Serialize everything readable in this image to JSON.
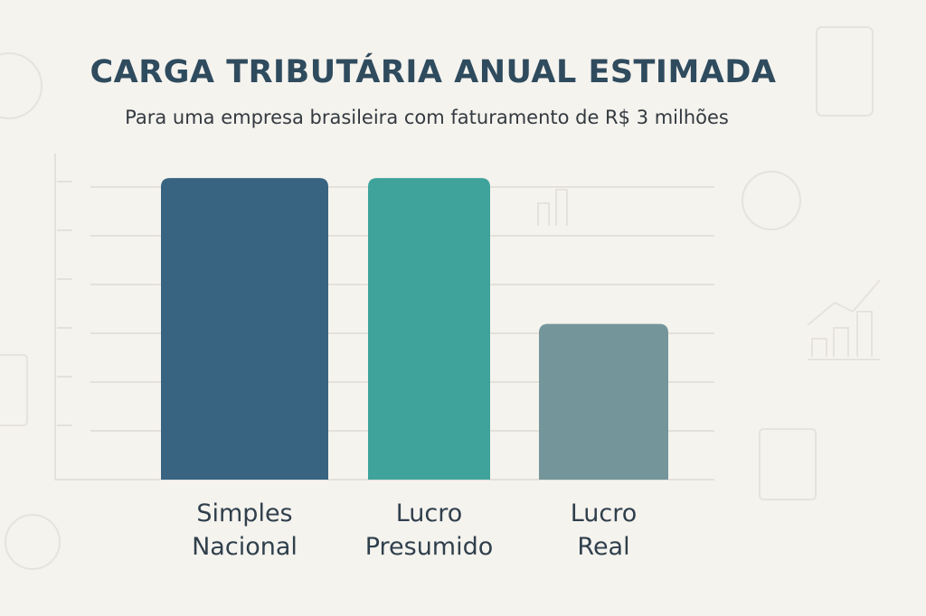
{
  "chart_data": {
    "type": "bar",
    "title": "CARGA TRIBUTÁRIA ANUAL ESTIMADA",
    "subtitle": "Para uma empresa brasileira com faturamento de R$ 3 milhões",
    "categories": [
      [
        "Simples",
        "Nacional"
      ],
      [
        "Lucro",
        "Presumido"
      ],
      [
        "Lucro",
        "Real"
      ]
    ],
    "values": [
      6.2,
      6.2,
      3.2
    ],
    "colors": [
      "#386482",
      "#3fa39c",
      "#74969a"
    ],
    "ylim": [
      0,
      7
    ],
    "grid": true,
    "xlabel": "",
    "ylabel": ""
  }
}
